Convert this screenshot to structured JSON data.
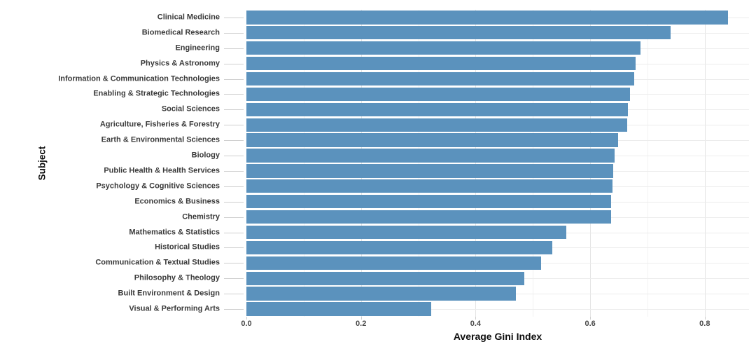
{
  "chart": {
    "background": "#ffffff",
    "bar_color": "#5b92bd",
    "grid_major_color": "#e4e4e4",
    "grid_minor_color": "#f2f2f2",
    "grid_horizontal_color": "#ececec",
    "axis_tick_color": "#cfcfcf",
    "category_label_color": "#3a3a3a",
    "tick_label_color": "#4a4a4a",
    "axis_title_color": "#0d0d0d"
  },
  "chart_data": {
    "type": "bar",
    "orientation": "horizontal",
    "title": "",
    "xlabel": "Average Gini Index",
    "ylabel": "Subject",
    "categories": [
      "Clinical Medicine",
      "Biomedical Research",
      "Engineering",
      "Physics & Astronomy",
      "Information & Communication Technologies",
      "Enabling & Strategic Technologies",
      "Social Sciences",
      "Agriculture, Fisheries & Forestry",
      "Earth & Environmental Sciences",
      "Biology",
      "Public Health & Health Services",
      "Psychology & Cognitive Sciences",
      "Economics & Business",
      "Chemistry",
      "Mathematics & Statistics",
      "Historical Studies",
      "Communication & Textual Studies",
      "Philosophy & Theology",
      "Built Environment & Design",
      "Visual & Performing Arts"
    ],
    "values": [
      0.84,
      0.74,
      0.688,
      0.679,
      0.677,
      0.669,
      0.666,
      0.665,
      0.649,
      0.643,
      0.64,
      0.639,
      0.637,
      0.636,
      0.558,
      0.534,
      0.514,
      0.485,
      0.47,
      0.322
    ],
    "xlim": [
      0,
      0.88
    ],
    "xtick_values": [
      0,
      0.2,
      0.4,
      0.6,
      0.8
    ],
    "xtick_labels": [
      "0.0",
      "0.2",
      "0.4",
      "0.6",
      "0.8"
    ],
    "minor_xtick_values": [
      0.1,
      0.3,
      0.5,
      0.7
    ],
    "grid": "on",
    "legend": "none"
  }
}
